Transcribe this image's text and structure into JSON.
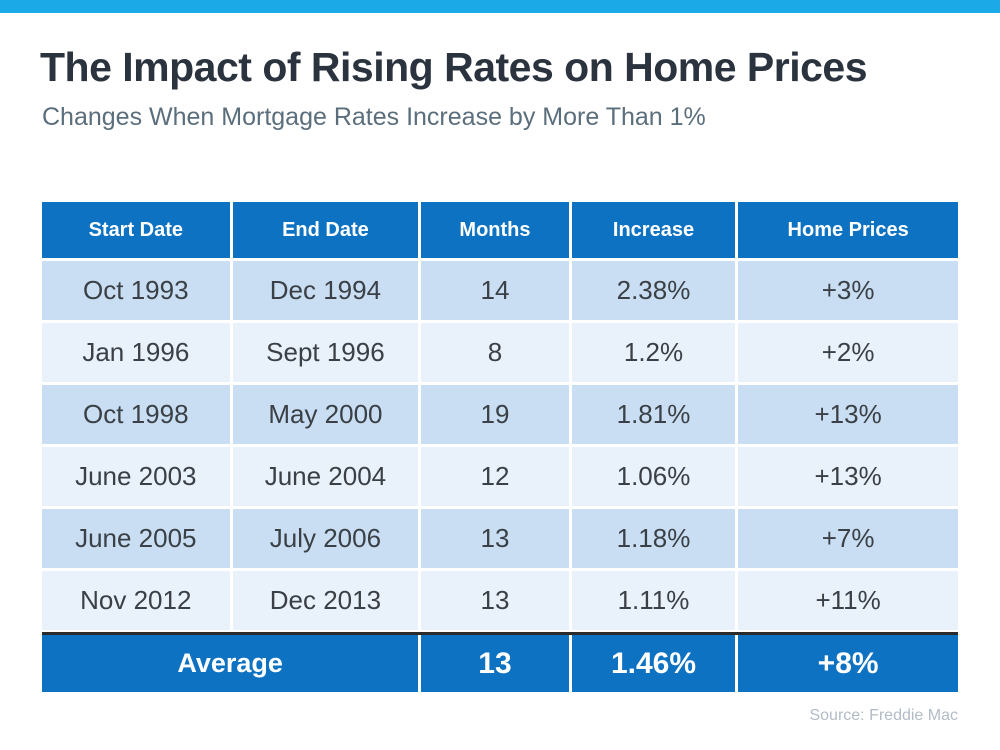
{
  "colors": {
    "top_bar": "#1CA9E8",
    "table_header_blue": "#0E72C2",
    "row_shade_dark": "#C9DEF3",
    "row_shade_light": "#E9F1FA",
    "title_text": "#2A333E",
    "subtitle_text": "#5B6E7C",
    "body_text": "#3A4045",
    "source_text": "#B2BCC6",
    "summary_divider": "#2B2B2B"
  },
  "header": {
    "title": "The Impact of Rising Rates on Home Prices",
    "subtitle": "Changes When Mortgage Rates Increase by More Than 1%"
  },
  "table": {
    "columns": [
      "Start Date",
      "End Date",
      "Months",
      "Increase",
      "Home Prices"
    ],
    "rows": [
      [
        "Oct 1993",
        "Dec 1994",
        "14",
        "2.38%",
        "+3%"
      ],
      [
        "Jan 1996",
        "Sept 1996",
        "8",
        "1.2%",
        "+2%"
      ],
      [
        "Oct 1998",
        "May 2000",
        "19",
        "1.81%",
        "+13%"
      ],
      [
        "June 2003",
        "June 2004",
        "12",
        "1.06%",
        "+13%"
      ],
      [
        "June 2005",
        "July 2006",
        "13",
        "1.18%",
        "+7%"
      ],
      [
        "Nov 2012",
        "Dec 2013",
        "13",
        "1.11%",
        "+11%"
      ]
    ],
    "footer": {
      "label": "Average",
      "months": "13",
      "increase": "1.46%",
      "home_prices": "+8%"
    }
  },
  "source": "Source: Freddie Mac",
  "chart_data": {
    "type": "table",
    "title": "The Impact of Rising Rates on Home Prices",
    "subtitle": "Changes When Mortgage Rates Increase by More Than 1%",
    "columns": [
      "Start Date",
      "End Date",
      "Months",
      "Increase",
      "Home Prices"
    ],
    "rows": [
      [
        "Oct 1993",
        "Dec 1994",
        14,
        "2.38%",
        "+3%"
      ],
      [
        "Jan 1996",
        "Sept 1996",
        8,
        "1.2%",
        "+2%"
      ],
      [
        "Oct 1998",
        "May 2000",
        19,
        "1.81%",
        "+13%"
      ],
      [
        "June 2003",
        "June 2004",
        12,
        "1.06%",
        "+13%"
      ],
      [
        "June 2005",
        "July 2006",
        13,
        "1.18%",
        "+7%"
      ],
      [
        "Nov 2012",
        "Dec 2013",
        13,
        "1.11%",
        "+11%"
      ]
    ],
    "summary_row": [
      "Average",
      null,
      13,
      "1.46%",
      "+8%"
    ],
    "source": "Source: Freddie Mac",
    "legend_position": "none",
    "grid": false
  }
}
